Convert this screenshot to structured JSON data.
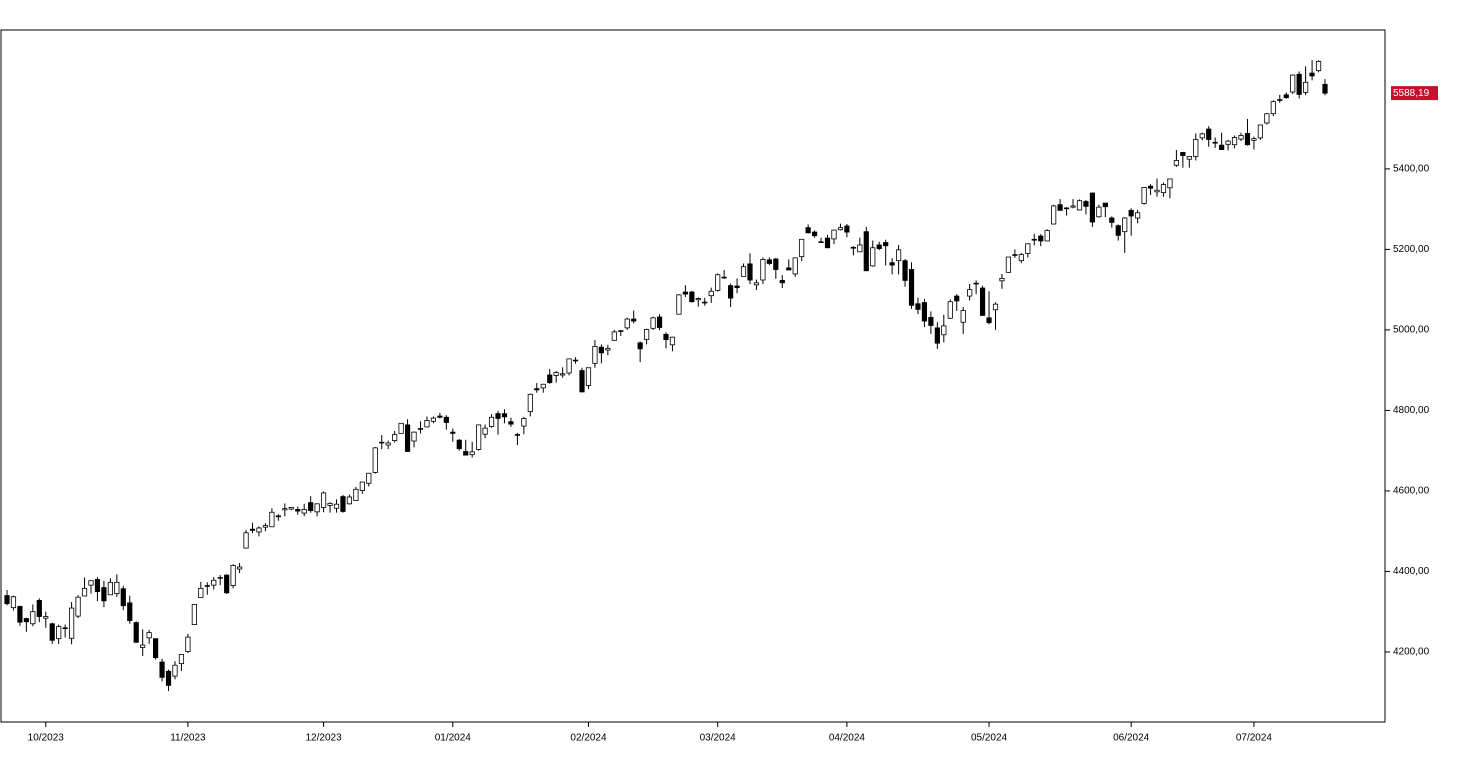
{
  "chart_data": {
    "type": "candlestick",
    "categories": [
      null,
      null,
      null,
      null,
      null,
      null,
      "10/2023",
      null,
      null,
      null,
      null,
      null,
      null,
      null,
      null,
      null,
      null,
      null,
      null,
      null,
      null,
      null,
      null,
      null,
      null,
      null,
      null,
      null,
      "11/2023",
      null,
      null,
      null,
      null,
      null,
      null,
      null,
      null,
      null,
      null,
      null,
      null,
      null,
      null,
      null,
      null,
      null,
      null,
      null,
      null,
      "12/2023",
      null,
      null,
      null,
      null,
      null,
      null,
      null,
      null,
      null,
      null,
      null,
      null,
      null,
      null,
      null,
      null,
      null,
      null,
      null,
      "01/2024",
      null,
      null,
      null,
      null,
      null,
      null,
      null,
      null,
      null,
      null,
      null,
      null,
      null,
      null,
      null,
      null,
      null,
      null,
      null,
      null,
      "02/2024",
      null,
      null,
      null,
      null,
      null,
      null,
      null,
      null,
      null,
      null,
      null,
      null,
      null,
      null,
      null,
      null,
      null,
      null,
      null,
      "03/2024",
      null,
      null,
      null,
      null,
      null,
      null,
      null,
      null,
      null,
      null,
      null,
      null,
      null,
      null,
      null,
      null,
      null,
      null,
      null,
      "04/2024",
      null,
      null,
      null,
      null,
      null,
      null,
      null,
      null,
      null,
      null,
      null,
      null,
      null,
      null,
      null,
      null,
      null,
      null,
      null,
      null,
      null,
      "05/2024",
      null,
      null,
      null,
      null,
      null,
      null,
      null,
      null,
      null,
      null,
      null,
      null,
      null,
      null,
      null,
      null,
      null,
      null,
      null,
      null,
      null,
      "06/2024",
      null,
      null,
      null,
      null,
      null,
      null,
      null,
      null,
      null,
      null,
      null,
      null,
      null,
      null,
      null,
      null,
      null,
      null,
      "07/2024",
      null,
      null,
      null,
      null,
      null,
      null,
      null,
      null,
      null,
      null,
      null
    ],
    "candles": [
      [
        4340,
        4354,
        4316,
        4320
      ],
      [
        4310,
        4340,
        4303,
        4337
      ],
      [
        4313,
        4315,
        4265,
        4274
      ],
      [
        4283,
        4285,
        4250,
        4275
      ],
      [
        4270,
        4318,
        4264,
        4300
      ],
      [
        4328,
        4333,
        4274,
        4288
      ],
      [
        4284,
        4300,
        4260,
        4288
      ],
      [
        4270,
        4273,
        4220,
        4229
      ],
      [
        4233,
        4268,
        4220,
        4263
      ],
      [
        4260,
        4268,
        4236,
        4258
      ],
      [
        4234,
        4324,
        4219,
        4309
      ],
      [
        4289,
        4341,
        4284,
        4336
      ],
      [
        4339,
        4385,
        4339,
        4358
      ],
      [
        4366,
        4378,
        4345,
        4377
      ],
      [
        4380,
        4386,
        4326,
        4350
      ],
      [
        4360,
        4377,
        4311,
        4327
      ],
      [
        4342,
        4383,
        4342,
        4373
      ],
      [
        4345,
        4393,
        4337,
        4373
      ],
      [
        4357,
        4364,
        4304,
        4315
      ],
      [
        4322,
        4340,
        4270,
        4278
      ],
      [
        4273,
        4276,
        4223,
        4224
      ],
      [
        4211,
        4256,
        4190,
        4217
      ],
      [
        4235,
        4255,
        4220,
        4248
      ],
      [
        4233,
        4233,
        4181,
        4186
      ],
      [
        4175,
        4183,
        4127,
        4137
      ],
      [
        4152,
        4156,
        4103,
        4117
      ],
      [
        4140,
        4177,
        4132,
        4167
      ],
      [
        4171,
        4194,
        4153,
        4194
      ],
      [
        4201,
        4245,
        4197,
        4237
      ],
      [
        4268,
        4319,
        4268,
        4318
      ],
      [
        4335,
        4374,
        4335,
        4358
      ],
      [
        4365,
        4373,
        4342,
        4365
      ],
      [
        4366,
        4386,
        4355,
        4378
      ],
      [
        4385,
        4391,
        4366,
        4383
      ],
      [
        4391,
        4393,
        4344,
        4347
      ],
      [
        4365,
        4418,
        4358,
        4415
      ],
      [
        4406,
        4421,
        4396,
        4411
      ],
      [
        4458,
        4503,
        4458,
        4496
      ],
      [
        4505,
        4521,
        4495,
        4502
      ],
      [
        4498,
        4512,
        4487,
        4508
      ],
      [
        4510,
        4520,
        4500,
        4514
      ],
      [
        4511,
        4557,
        4510,
        4547
      ],
      [
        4538,
        4542,
        4526,
        4538
      ],
      [
        4553,
        4569,
        4537,
        4556
      ],
      [
        4555,
        4560,
        4552,
        4559
      ],
      [
        4554,
        4561,
        4541,
        4550
      ],
      [
        4545,
        4568,
        4537,
        4554
      ],
      [
        4571,
        4587,
        4546,
        4551
      ],
      [
        4548,
        4569,
        4537,
        4568
      ],
      [
        4559,
        4599,
        4547,
        4595
      ],
      [
        4564,
        4572,
        4546,
        4569
      ],
      [
        4557,
        4579,
        4546,
        4567
      ],
      [
        4586,
        4590,
        4546,
        4549
      ],
      [
        4568,
        4591,
        4566,
        4585
      ],
      [
        4576,
        4610,
        4575,
        4604
      ],
      [
        4601,
        4623,
        4593,
        4622
      ],
      [
        4619,
        4644,
        4611,
        4644
      ],
      [
        4646,
        4709,
        4643,
        4707
      ],
      [
        4721,
        4739,
        4704,
        4720
      ],
      [
        4714,
        4725,
        4704,
        4719
      ],
      [
        4725,
        4749,
        4720,
        4740
      ],
      [
        4743,
        4768,
        4743,
        4768
      ],
      [
        4764,
        4778,
        4697,
        4698
      ],
      [
        4724,
        4748,
        4708,
        4746
      ],
      [
        4753,
        4773,
        4743,
        4755
      ],
      [
        4759,
        4785,
        4758,
        4775
      ],
      [
        4773,
        4785,
        4768,
        4781
      ],
      [
        4786,
        4794,
        4780,
        4783
      ],
      [
        4783,
        4788,
        4752,
        4770
      ],
      [
        4746,
        4755,
        4722,
        4743
      ],
      [
        4726,
        4729,
        4700,
        4705
      ],
      [
        4698,
        4727,
        4688,
        4689
      ],
      [
        4690,
        4722,
        4683,
        4697
      ],
      [
        4703,
        4765,
        4700,
        4764
      ],
      [
        4741,
        4765,
        4731,
        4756
      ],
      [
        4760,
        4791,
        4757,
        4783
      ],
      [
        4792,
        4799,
        4740,
        4780
      ],
      [
        4792,
        4803,
        4768,
        4784
      ],
      [
        4772,
        4782,
        4759,
        4766
      ],
      [
        4740,
        4744,
        4714,
        4739
      ],
      [
        4761,
        4784,
        4741,
        4780
      ],
      [
        4797,
        4842,
        4785,
        4840
      ],
      [
        4854,
        4868,
        4844,
        4851
      ],
      [
        4856,
        4866,
        4844,
        4865
      ],
      [
        4888,
        4903,
        4866,
        4869
      ],
      [
        4887,
        4898,
        4869,
        4894
      ],
      [
        4888,
        4907,
        4881,
        4891
      ],
      [
        4893,
        4929,
        4887,
        4928
      ],
      [
        4925,
        4932,
        4916,
        4925
      ],
      [
        4899,
        4906,
        4845,
        4846
      ],
      [
        4862,
        4906,
        4853,
        4906
      ],
      [
        4917,
        4975,
        4906,
        4959
      ],
      [
        4957,
        4964,
        4917,
        4943
      ],
      [
        4950,
        4963,
        4937,
        4954
      ],
      [
        4974,
        5000,
        4974,
        4995
      ],
      [
        4996,
        5000,
        4985,
        4998
      ],
      [
        5005,
        5030,
        5000,
        5027
      ],
      [
        5027,
        5048,
        5016,
        5022
      ],
      [
        4968,
        4971,
        4920,
        4953
      ],
      [
        4976,
        5003,
        4964,
        5001
      ],
      [
        5004,
        5033,
        5000,
        5030
      ],
      [
        5032,
        5039,
        4999,
        5006
      ],
      [
        4989,
        4994,
        4954,
        4976
      ],
      [
        4963,
        4983,
        4947,
        4982
      ],
      [
        5039,
        5089,
        5039,
        5087
      ],
      [
        5094,
        5111,
        5082,
        5089
      ],
      [
        5094,
        5097,
        5068,
        5070
      ],
      [
        5075,
        5081,
        5058,
        5078
      ],
      [
        5068,
        5080,
        5060,
        5069
      ],
      [
        5085,
        5105,
        5067,
        5096
      ],
      [
        5098,
        5140,
        5095,
        5137
      ],
      [
        5131,
        5149,
        5127,
        5131
      ],
      [
        5110,
        5115,
        5057,
        5079
      ],
      [
        5109,
        5128,
        5091,
        5105
      ],
      [
        5133,
        5165,
        5133,
        5157
      ],
      [
        5164,
        5190,
        5114,
        5124
      ],
      [
        5112,
        5125,
        5099,
        5117
      ],
      [
        5124,
        5180,
        5114,
        5175
      ],
      [
        5174,
        5180,
        5161,
        5165
      ],
      [
        5176,
        5179,
        5127,
        5150
      ],
      [
        5123,
        5136,
        5104,
        5117
      ],
      [
        5154,
        5175,
        5148,
        5149
      ],
      [
        5139,
        5180,
        5132,
        5179
      ],
      [
        5182,
        5226,
        5171,
        5225
      ],
      [
        5254,
        5262,
        5240,
        5241
      ],
      [
        5243,
        5247,
        5229,
        5234
      ],
      [
        5219,
        5229,
        5216,
        5218
      ],
      [
        5228,
        5236,
        5204,
        5204
      ],
      [
        5226,
        5249,
        5213,
        5248
      ],
      [
        5249,
        5264,
        5247,
        5254
      ],
      [
        5258,
        5263,
        5230,
        5243
      ],
      [
        5205,
        5208,
        5185,
        5205
      ],
      [
        5194,
        5229,
        5193,
        5211
      ],
      [
        5244,
        5256,
        5146,
        5147
      ],
      [
        5159,
        5222,
        5157,
        5204
      ],
      [
        5211,
        5219,
        5198,
        5202
      ],
      [
        5217,
        5224,
        5160,
        5209
      ],
      [
        5167,
        5178,
        5138,
        5161
      ],
      [
        5172,
        5211,
        5138,
        5199
      ],
      [
        5172,
        5176,
        5107,
        5123
      ],
      [
        5150,
        5168,
        5052,
        5061
      ],
      [
        5065,
        5080,
        5039,
        5051
      ],
      [
        5068,
        5077,
        5007,
        5022
      ],
      [
        5031,
        5046,
        4990,
        5011
      ],
      [
        5005,
        5019,
        4953,
        4967
      ],
      [
        4988,
        5038,
        4969,
        5010
      ],
      [
        5029,
        5076,
        5027,
        5070
      ],
      [
        5084,
        5089,
        5047,
        5072
      ],
      [
        5019,
        5057,
        4990,
        5048
      ],
      [
        5084,
        5114,
        5073,
        5100
      ],
      [
        5115,
        5123,
        5089,
        5116
      ],
      [
        5104,
        5110,
        5035,
        5036
      ],
      [
        5030,
        5096,
        5014,
        5018
      ],
      [
        5050,
        5069,
        5000,
        5064
      ],
      [
        5122,
        5139,
        5102,
        5128
      ],
      [
        5143,
        5181,
        5142,
        5181
      ],
      [
        5187,
        5200,
        5179,
        5187
      ],
      [
        5172,
        5191,
        5166,
        5187
      ],
      [
        5190,
        5215,
        5180,
        5214
      ],
      [
        5225,
        5239,
        5210,
        5223
      ],
      [
        5233,
        5238,
        5208,
        5221
      ],
      [
        5221,
        5250,
        5221,
        5247
      ],
      [
        5263,
        5311,
        5263,
        5308
      ],
      [
        5311,
        5325,
        5296,
        5297
      ],
      [
        5303,
        5305,
        5284,
        5303
      ],
      [
        5305,
        5325,
        5302,
        5308
      ],
      [
        5298,
        5324,
        5297,
        5321
      ],
      [
        5319,
        5323,
        5287,
        5307
      ],
      [
        5340,
        5341,
        5256,
        5268
      ],
      [
        5281,
        5311,
        5279,
        5305
      ],
      [
        5315,
        5315,
        5280,
        5306
      ],
      [
        5278,
        5282,
        5254,
        5267
      ],
      [
        5259,
        5262,
        5222,
        5235
      ],
      [
        5244,
        5280,
        5191,
        5278
      ],
      [
        5297,
        5302,
        5234,
        5283
      ],
      [
        5278,
        5298,
        5265,
        5291
      ],
      [
        5314,
        5354,
        5311,
        5354
      ],
      [
        5357,
        5362,
        5335,
        5352
      ],
      [
        5343,
        5376,
        5331,
        5347
      ],
      [
        5341,
        5366,
        5331,
        5361
      ],
      [
        5353,
        5375,
        5327,
        5375
      ],
      [
        5409,
        5447,
        5405,
        5421
      ],
      [
        5441,
        5442,
        5403,
        5433
      ],
      [
        5424,
        5432,
        5403,
        5431
      ],
      [
        5431,
        5488,
        5421,
        5473
      ],
      [
        5477,
        5490,
        5471,
        5487
      ],
      [
        5499,
        5506,
        5455,
        5473
      ],
      [
        5466,
        5478,
        5452,
        5464
      ],
      [
        5459,
        5490,
        5447,
        5448
      ],
      [
        5461,
        5472,
        5446,
        5469
      ],
      [
        5460,
        5483,
        5451,
        5478
      ],
      [
        5474,
        5490,
        5469,
        5483
      ],
      [
        5488,
        5524,
        5458,
        5460
      ],
      [
        5471,
        5480,
        5448,
        5475
      ],
      [
        5477,
        5510,
        5472,
        5509
      ],
      [
        5514,
        5539,
        5510,
        5537
      ],
      [
        5537,
        5570,
        5531,
        5567
      ],
      [
        5572,
        5584,
        5564,
        5572
      ],
      [
        5584,
        5590,
        5574,
        5577
      ],
      [
        5591,
        5635,
        5586,
        5633
      ],
      [
        5635,
        5642,
        5575,
        5585
      ],
      [
        5590,
        5655,
        5583,
        5615
      ],
      [
        5638,
        5670,
        5620,
        5631
      ],
      [
        5644,
        5670,
        5640,
        5667
      ],
      [
        5610,
        5623,
        5583,
        5588.19
      ]
    ],
    "up_color": "#ffffff",
    "down_color": "#000000",
    "line_color": "#000000",
    "last_price": {
      "value": 5588.19,
      "label": "5588,19"
    },
    "last_price_color": "#c8102e",
    "ylim": [
      4026,
      5745
    ],
    "yticks": [
      {
        "value": 4200,
        "label": "4200,00"
      },
      {
        "value": 4400,
        "label": "4400,00"
      },
      {
        "value": 4600,
        "label": "4600,00"
      },
      {
        "value": 4800,
        "label": "4800,00"
      },
      {
        "value": 5000,
        "label": "5000,00"
      },
      {
        "value": 5200,
        "label": "5200,00"
      },
      {
        "value": 5400,
        "label": "5400,00"
      }
    ],
    "y_axis_side": "right",
    "grid": false
  }
}
